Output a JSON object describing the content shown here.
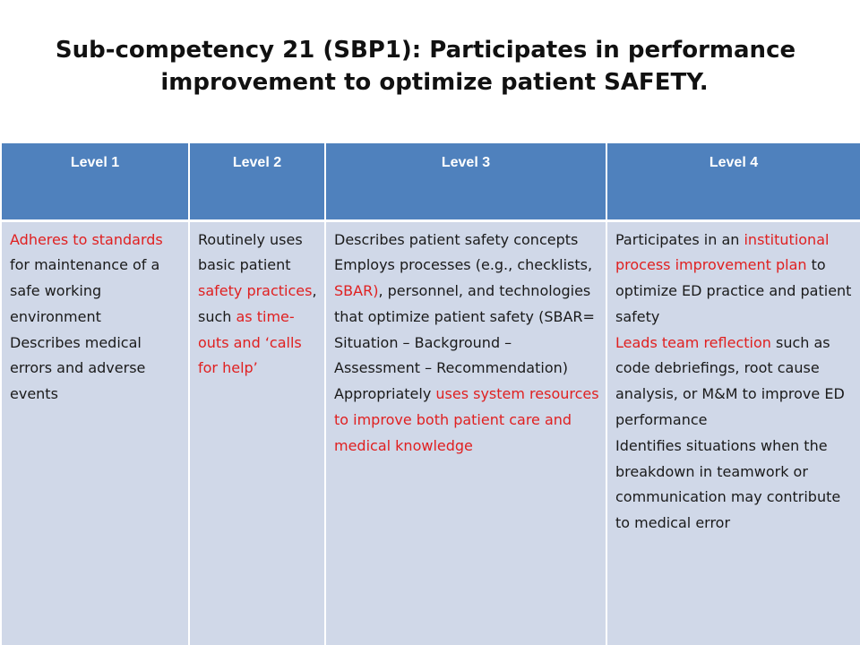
{
  "title": {
    "line1": "Sub-competency 21 (SBP1):  Participates in performance",
    "line2": "improvement to optimize patient SAFETY."
  },
  "table": {
    "headers": [
      "Level 1",
      "Level 2",
      "Level 3",
      "Level 4"
    ],
    "level1": {
      "p1_red": "Adheres to standards",
      "p1_rest": " for maintenance of a safe working environment",
      "p2": "Describes medical errors and adverse events"
    },
    "level2": {
      "p1_a": "Routinely uses basic patient ",
      "p1_red1": "safety practices",
      "p1_b": ", such ",
      "p1_red2": "as time-outs and ‘calls for help’"
    },
    "level3": {
      "p1": "Describes patient safety concepts",
      "p2_a": "Employs processes (e.g., checklists, ",
      "p2_red": "SBAR)",
      "p2_b": ", personnel, and technologies that optimize patient safety (SBAR= Situation – Background – Assessment – Recommendation)",
      "p3_a": "Appropriately ",
      "p3_red": "uses system resources to improve both patient care and medical knowledge"
    },
    "level4": {
      "p1_a": "Participates in an ",
      "p1_red": "institutional process improvement plan",
      "p1_b": " to optimize ED practice and patient safety",
      "p2_red": "Leads team reflection",
      "p2_b": " such as code debriefings, root cause analysis, or M&M to improve ED performance",
      "p3": "Identifies situations when the breakdown in teamwork or communication may contribute to medical error"
    }
  }
}
